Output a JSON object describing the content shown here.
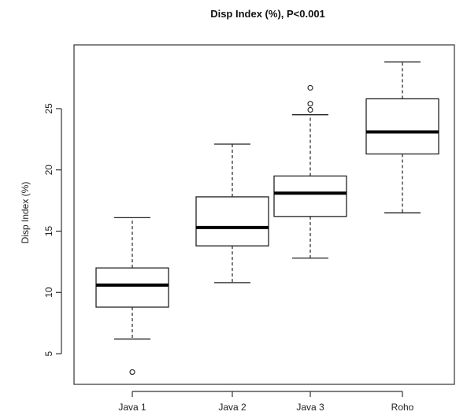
{
  "chart_data": {
    "type": "box",
    "title": "Disp Index (%),  P<0.001",
    "xlabel": "",
    "ylabel": "Disp Index (%)",
    "ylim": [
      2.5,
      30.2
    ],
    "yticks": [
      5,
      10,
      15,
      20,
      25
    ],
    "grid": false,
    "categories": [
      "Java 1",
      "Java 2",
      "Java 3",
      "Roho"
    ],
    "boxes": [
      {
        "category": "Java 1",
        "whisker_low": 6.2,
        "q1": 8.8,
        "median": 10.6,
        "q3": 12.0,
        "whisker_high": 16.1,
        "outliers": [
          3.5
        ]
      },
      {
        "category": "Java 2",
        "whisker_low": 10.8,
        "q1": 13.8,
        "median": 15.3,
        "q3": 17.8,
        "whisker_high": 22.1,
        "outliers": []
      },
      {
        "category": "Java 3",
        "whisker_low": 12.8,
        "q1": 16.2,
        "median": 18.1,
        "q3": 19.5,
        "whisker_high": 24.5,
        "outliers": [
          24.9,
          25.4,
          26.7
        ]
      },
      {
        "category": "Roho",
        "whisker_low": 16.5,
        "q1": 21.3,
        "median": 23.1,
        "q3": 25.8,
        "whisker_high": 28.8,
        "outliers": []
      }
    ]
  }
}
